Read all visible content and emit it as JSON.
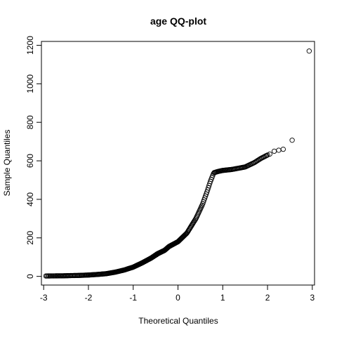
{
  "chart_data": {
    "type": "scatter",
    "title": "age QQ-plot",
    "xlabel": "Theoretical Quantiles",
    "ylabel": "Sample Quantiles",
    "xlim": [
      -3.05,
      3.05
    ],
    "ylim": [
      -45,
      1220
    ],
    "xticks": [
      -3,
      -2,
      -1,
      0,
      1,
      2,
      3
    ],
    "yticks": [
      0,
      200,
      400,
      600,
      800,
      1000,
      1200
    ],
    "grid": false,
    "marker": "open-circle",
    "anchors": [
      [
        -2.95,
        2
      ],
      [
        -2.55,
        3
      ],
      [
        -2.4,
        4
      ],
      [
        -2.2,
        5
      ],
      [
        -2.0,
        7
      ],
      [
        -1.8,
        10
      ],
      [
        -1.6,
        14
      ],
      [
        -1.4,
        22
      ],
      [
        -1.2,
        33
      ],
      [
        -1.0,
        48
      ],
      [
        -0.8,
        70
      ],
      [
        -0.6,
        95
      ],
      [
        -0.45,
        118
      ],
      [
        -0.3,
        135
      ],
      [
        -0.2,
        155
      ],
      [
        0.0,
        180
      ],
      [
        0.2,
        225
      ],
      [
        0.4,
        300
      ],
      [
        0.55,
        375
      ],
      [
        0.65,
        440
      ],
      [
        0.72,
        490
      ],
      [
        0.8,
        538
      ],
      [
        0.9,
        545
      ],
      [
        1.0,
        550
      ],
      [
        1.2,
        555
      ],
      [
        1.5,
        568
      ],
      [
        1.7,
        590
      ],
      [
        1.85,
        612
      ],
      [
        2.0,
        630
      ]
    ],
    "point_count": 400,
    "tail_points": [
      [
        2.05,
        635
      ],
      [
        2.15,
        650
      ],
      [
        2.25,
        655
      ],
      [
        2.35,
        660
      ],
      [
        2.55,
        707
      ],
      [
        2.93,
        1170
      ]
    ]
  }
}
